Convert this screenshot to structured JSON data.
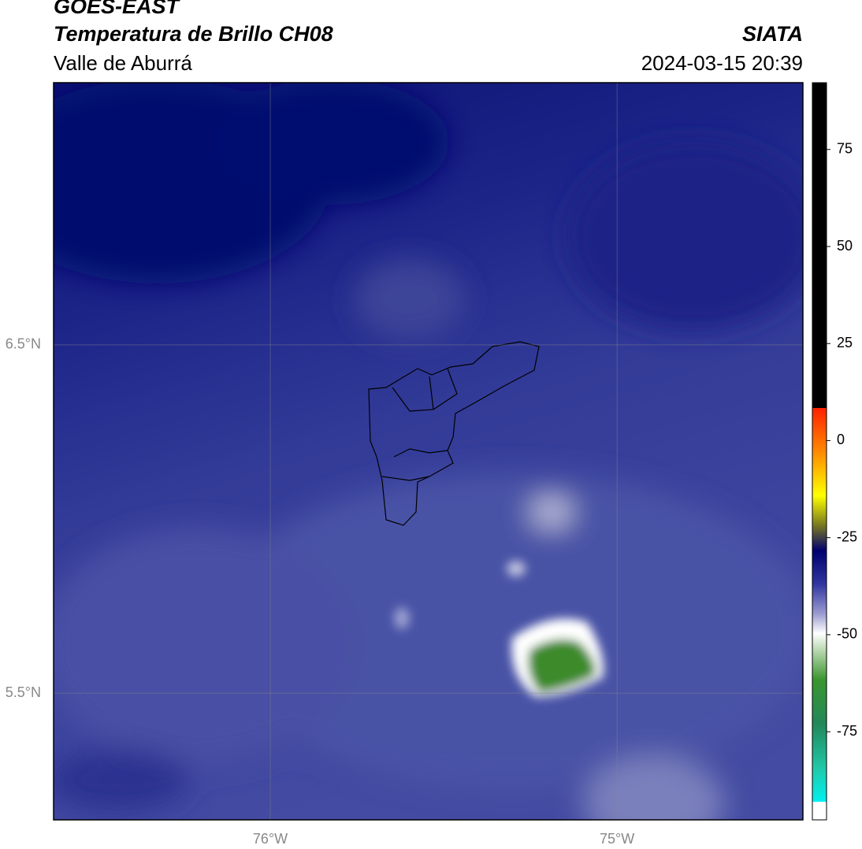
{
  "header": {
    "satellite": "GOES-EAST",
    "product": "Temperatura de Brillo CH08",
    "region": "Valle de Aburrá",
    "source": "SIATA",
    "datetime": "2024-03-15 20:39"
  },
  "map": {
    "xlim": [
      -76.625,
      -74.464
    ],
    "ylim": [
      5.136,
      7.253
    ],
    "xticks": [
      {
        "value": -76,
        "label": "76°W"
      },
      {
        "value": -75,
        "label": "75°W"
      }
    ],
    "yticks": [
      {
        "value": 6.5,
        "label": "6.5°N"
      },
      {
        "value": 5.5,
        "label": "5.5°N"
      }
    ],
    "grid": true
  },
  "colorbar": {
    "lim": [
      -97.7,
      92.2
    ],
    "ticks": [
      75,
      50,
      25,
      0,
      -25,
      -50,
      -75
    ]
  }
}
